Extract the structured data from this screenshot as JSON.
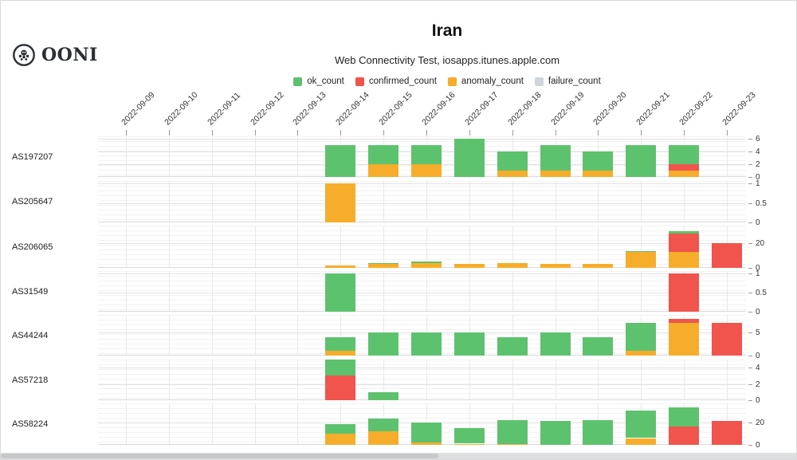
{
  "logo": {
    "text": "OONI"
  },
  "chart_data": {
    "type": "bar",
    "stacked": true,
    "title": "Iran",
    "subtitle": "Web Connectivity Test, iosapps.itunes.apple.com",
    "legend_position": "top-center",
    "grid": true,
    "colors": {
      "ok_count": "#5dc26d",
      "confirmed_count": "#f0544c",
      "anomaly_count": "#f6ad2b",
      "failure_count": "#ced5db"
    },
    "legend": [
      {
        "key": "ok_count",
        "label": "ok_count"
      },
      {
        "key": "confirmed_count",
        "label": "confirmed_count"
      },
      {
        "key": "anomaly_count",
        "label": "anomaly_count"
      },
      {
        "key": "failure_count",
        "label": "failure_count"
      }
    ],
    "stack_order": [
      "anomaly_count",
      "confirmed_count",
      "ok_count",
      "failure_count"
    ],
    "x_dates": [
      "2022-09-09",
      "2022-09-10",
      "2022-09-11",
      "2022-09-12",
      "2022-09-13",
      "2022-09-14",
      "2022-09-15",
      "2022-09-16",
      "2022-09-17",
      "2022-09-18",
      "2022-09-19",
      "2022-09-20",
      "2022-09-21",
      "2022-09-22",
      "2022-09-23"
    ],
    "facets": [
      {
        "label": "AS197207",
        "yticks": [
          0,
          2,
          4,
          6
        ],
        "bars": [
          {
            "date": "2022-09-14",
            "ok_count": 5
          },
          {
            "date": "2022-09-15",
            "anomaly_count": 2,
            "ok_count": 3
          },
          {
            "date": "2022-09-16",
            "anomaly_count": 2,
            "ok_count": 3
          },
          {
            "date": "2022-09-17",
            "ok_count": 6
          },
          {
            "date": "2022-09-18",
            "anomaly_count": 1,
            "ok_count": 3
          },
          {
            "date": "2022-09-19",
            "anomaly_count": 1,
            "ok_count": 4
          },
          {
            "date": "2022-09-20",
            "anomaly_count": 1,
            "ok_count": 3
          },
          {
            "date": "2022-09-21",
            "ok_count": 5
          },
          {
            "date": "2022-09-22",
            "anomaly_count": 1,
            "confirmed_count": 1,
            "ok_count": 3
          }
        ]
      },
      {
        "label": "AS205647",
        "yticks": [
          0,
          0.5,
          1
        ],
        "bars": [
          {
            "date": "2022-09-14",
            "anomaly_count": 1
          }
        ]
      },
      {
        "label": "AS206065",
        "yticks": [
          0,
          20
        ],
        "bars": [
          {
            "date": "2022-09-14",
            "anomaly_count": 2
          },
          {
            "date": "2022-09-15",
            "anomaly_count": 3,
            "ok_count": 1
          },
          {
            "date": "2022-09-16",
            "anomaly_count": 4,
            "ok_count": 1
          },
          {
            "date": "2022-09-17",
            "anomaly_count": 3
          },
          {
            "date": "2022-09-18",
            "anomaly_count": 4
          },
          {
            "date": "2022-09-19",
            "anomaly_count": 3
          },
          {
            "date": "2022-09-20",
            "anomaly_count": 3
          },
          {
            "date": "2022-09-21",
            "anomaly_count": 13,
            "ok_count": 1
          },
          {
            "date": "2022-09-22",
            "anomaly_count": 13,
            "confirmed_count": 15,
            "ok_count": 2
          },
          {
            "date": "2022-09-23",
            "confirmed_count": 20
          }
        ]
      },
      {
        "label": "AS31549",
        "yticks": [
          0,
          0.5,
          1
        ],
        "bars": [
          {
            "date": "2022-09-14",
            "ok_count": 1
          },
          {
            "date": "2022-09-22",
            "confirmed_count": 1
          }
        ]
      },
      {
        "label": "AS44244",
        "yticks": [
          0,
          5
        ],
        "bars": [
          {
            "date": "2022-09-14",
            "anomaly_count": 1,
            "ok_count": 3
          },
          {
            "date": "2022-09-15",
            "ok_count": 5
          },
          {
            "date": "2022-09-16",
            "ok_count": 5
          },
          {
            "date": "2022-09-17",
            "ok_count": 5
          },
          {
            "date": "2022-09-18",
            "ok_count": 4
          },
          {
            "date": "2022-09-19",
            "ok_count": 5
          },
          {
            "date": "2022-09-20",
            "ok_count": 4
          },
          {
            "date": "2022-09-21",
            "anomaly_count": 1,
            "ok_count": 6
          },
          {
            "date": "2022-09-22",
            "anomaly_count": 7,
            "confirmed_count": 1
          },
          {
            "date": "2022-09-23",
            "confirmed_count": 7
          }
        ]
      },
      {
        "label": "AS57218",
        "yticks": [
          0,
          2,
          4
        ],
        "bars": [
          {
            "date": "2022-09-14",
            "confirmed_count": 3,
            "ok_count": 2
          },
          {
            "date": "2022-09-15",
            "ok_count": 1
          }
        ]
      },
      {
        "label": "AS58224",
        "yticks": [
          0,
          20
        ],
        "bars": [
          {
            "date": "2022-09-14",
            "anomaly_count": 10,
            "ok_count": 8
          },
          {
            "date": "2022-09-15",
            "anomaly_count": 12,
            "ok_count": 11
          },
          {
            "date": "2022-09-16",
            "anomaly_count": 2,
            "ok_count": 18
          },
          {
            "date": "2022-09-17",
            "anomaly_count": 1,
            "ok_count": 14
          },
          {
            "date": "2022-09-18",
            "anomaly_count": 1,
            "ok_count": 21
          },
          {
            "date": "2022-09-19",
            "ok_count": 21
          },
          {
            "date": "2022-09-20",
            "ok_count": 22
          },
          {
            "date": "2022-09-21",
            "anomaly_count": 6,
            "ok_count": 24
          },
          {
            "date": "2022-09-22",
            "confirmed_count": 16,
            "ok_count": 17
          },
          {
            "date": "2022-09-23",
            "confirmed_count": 21
          }
        ]
      }
    ]
  }
}
